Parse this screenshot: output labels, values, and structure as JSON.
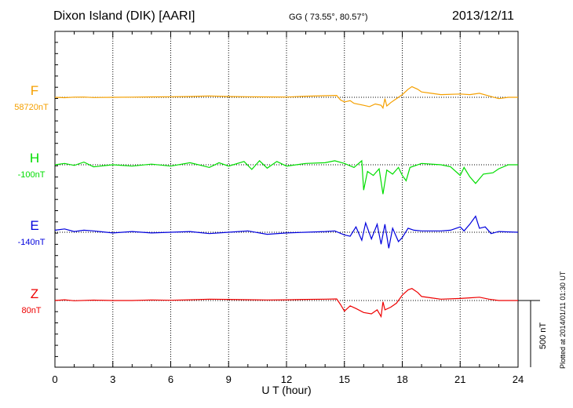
{
  "header": {
    "station": "Dixon Island (DIK)  [AARI]",
    "coords": "GG ( 73.55°,  80.57°)",
    "date": "2013/12/11"
  },
  "side_note": "Plotted at 2014/01/11 01:30 UT",
  "chart_data": {
    "type": "line",
    "xlabel": "U T (hour)",
    "xlim": [
      0,
      24
    ],
    "xticks": [
      0,
      3,
      6,
      9,
      12,
      15,
      18,
      21,
      24
    ],
    "scale_bar": "500 nT",
    "series": [
      {
        "name": "F",
        "baseline": "58720nT",
        "color": "#f5a000",
        "points": [
          [
            0,
            0
          ],
          [
            0.5,
            -3
          ],
          [
            1,
            1
          ],
          [
            1.5,
            2
          ],
          [
            2,
            -2
          ],
          [
            3,
            0
          ],
          [
            4,
            1
          ],
          [
            5,
            3
          ],
          [
            6,
            4
          ],
          [
            7,
            6
          ],
          [
            8,
            10
          ],
          [
            9,
            6
          ],
          [
            10,
            4
          ],
          [
            11,
            3
          ],
          [
            12,
            2
          ],
          [
            13,
            8
          ],
          [
            14,
            12
          ],
          [
            14.6,
            14
          ],
          [
            14.8,
            -20
          ],
          [
            15,
            -35
          ],
          [
            15.3,
            -25
          ],
          [
            15.5,
            -45
          ],
          [
            16,
            -60
          ],
          [
            16.3,
            -70
          ],
          [
            16.6,
            -50
          ],
          [
            16.9,
            -60
          ],
          [
            17,
            -80
          ],
          [
            17.1,
            -10
          ],
          [
            17.2,
            -65
          ],
          [
            17.4,
            -40
          ],
          [
            17.7,
            -10
          ],
          [
            18,
            20
          ],
          [
            18.3,
            60
          ],
          [
            18.5,
            80
          ],
          [
            18.8,
            60
          ],
          [
            19,
            40
          ],
          [
            19.5,
            30
          ],
          [
            20,
            20
          ],
          [
            21,
            25
          ],
          [
            21.5,
            20
          ],
          [
            22,
            30
          ],
          [
            22.5,
            10
          ],
          [
            23,
            -10
          ],
          [
            23.5,
            0
          ],
          [
            24,
            0
          ]
        ]
      },
      {
        "name": "H",
        "baseline": "-100nT",
        "color": "#00dd00",
        "points": [
          [
            0,
            0
          ],
          [
            0.5,
            10
          ],
          [
            1,
            -5
          ],
          [
            1.5,
            20
          ],
          [
            2,
            -15
          ],
          [
            3,
            0
          ],
          [
            4,
            -10
          ],
          [
            5,
            5
          ],
          [
            6,
            -10
          ],
          [
            7,
            15
          ],
          [
            8,
            -20
          ],
          [
            8.5,
            15
          ],
          [
            9,
            -10
          ],
          [
            9.8,
            25
          ],
          [
            10.2,
            -35
          ],
          [
            10.6,
            30
          ],
          [
            11,
            -25
          ],
          [
            11.5,
            25
          ],
          [
            12,
            -10
          ],
          [
            13,
            10
          ],
          [
            14,
            15
          ],
          [
            14.5,
            30
          ],
          [
            15,
            10
          ],
          [
            15.5,
            -20
          ],
          [
            15.9,
            30
          ],
          [
            16,
            -190
          ],
          [
            16.2,
            -50
          ],
          [
            16.5,
            -80
          ],
          [
            16.8,
            -30
          ],
          [
            17,
            -220
          ],
          [
            17.2,
            -40
          ],
          [
            17.5,
            -70
          ],
          [
            17.8,
            -20
          ],
          [
            18,
            -80
          ],
          [
            18.2,
            -120
          ],
          [
            18.4,
            -20
          ],
          [
            19,
            10
          ],
          [
            20,
            0
          ],
          [
            20.5,
            -15
          ],
          [
            21,
            -80
          ],
          [
            21.2,
            -20
          ],
          [
            21.5,
            -90
          ],
          [
            21.8,
            -140
          ],
          [
            22.2,
            -70
          ],
          [
            22.7,
            -60
          ],
          [
            23,
            -30
          ],
          [
            23.5,
            0
          ],
          [
            24,
            0
          ]
        ]
      },
      {
        "name": "E",
        "baseline": "-140nT",
        "color": "#0000dd",
        "points": [
          [
            0,
            15
          ],
          [
            0.5,
            25
          ],
          [
            1,
            5
          ],
          [
            1.5,
            15
          ],
          [
            2,
            10
          ],
          [
            3,
            -5
          ],
          [
            4,
            5
          ],
          [
            5,
            -5
          ],
          [
            6,
            0
          ],
          [
            7,
            5
          ],
          [
            8,
            -10
          ],
          [
            9,
            0
          ],
          [
            10,
            10
          ],
          [
            11,
            -15
          ],
          [
            12,
            -5
          ],
          [
            13,
            0
          ],
          [
            14,
            5
          ],
          [
            14.5,
            10
          ],
          [
            15,
            -20
          ],
          [
            15.3,
            -30
          ],
          [
            15.6,
            40
          ],
          [
            15.9,
            -60
          ],
          [
            16.1,
            70
          ],
          [
            16.4,
            -50
          ],
          [
            16.7,
            60
          ],
          [
            16.9,
            -90
          ],
          [
            17.1,
            60
          ],
          [
            17.3,
            -120
          ],
          [
            17.5,
            30
          ],
          [
            17.8,
            -70
          ],
          [
            18,
            -40
          ],
          [
            18.3,
            30
          ],
          [
            18.6,
            15
          ],
          [
            19,
            10
          ],
          [
            20,
            10
          ],
          [
            20.5,
            15
          ],
          [
            21,
            40
          ],
          [
            21.2,
            10
          ],
          [
            21.5,
            60
          ],
          [
            21.8,
            120
          ],
          [
            22,
            30
          ],
          [
            22.3,
            40
          ],
          [
            22.6,
            -10
          ],
          [
            23,
            5
          ],
          [
            24,
            0
          ]
        ]
      },
      {
        "name": "Z",
        "baseline": "80nT",
        "color": "#ee0000",
        "points": [
          [
            0,
            0
          ],
          [
            0.5,
            5
          ],
          [
            1,
            -2
          ],
          [
            2,
            3
          ],
          [
            3,
            0
          ],
          [
            4,
            0
          ],
          [
            5,
            4
          ],
          [
            6,
            2
          ],
          [
            7,
            5
          ],
          [
            8,
            10
          ],
          [
            9,
            8
          ],
          [
            10,
            6
          ],
          [
            11,
            4
          ],
          [
            12,
            5
          ],
          [
            13,
            8
          ],
          [
            14,
            10
          ],
          [
            14.6,
            12
          ],
          [
            14.8,
            -30
          ],
          [
            15,
            -80
          ],
          [
            15.3,
            -40
          ],
          [
            15.6,
            -60
          ],
          [
            16,
            -90
          ],
          [
            16.4,
            -100
          ],
          [
            16.7,
            -70
          ],
          [
            16.9,
            -120
          ],
          [
            17,
            -10
          ],
          [
            17.1,
            -70
          ],
          [
            17.4,
            -50
          ],
          [
            17.7,
            -20
          ],
          [
            18,
            40
          ],
          [
            18.3,
            80
          ],
          [
            18.5,
            90
          ],
          [
            18.8,
            60
          ],
          [
            19,
            30
          ],
          [
            19.5,
            20
          ],
          [
            20,
            10
          ],
          [
            21,
            15
          ],
          [
            21.5,
            20
          ],
          [
            22,
            25
          ],
          [
            22.5,
            10
          ],
          [
            23,
            0
          ],
          [
            24,
            0
          ]
        ]
      }
    ]
  }
}
